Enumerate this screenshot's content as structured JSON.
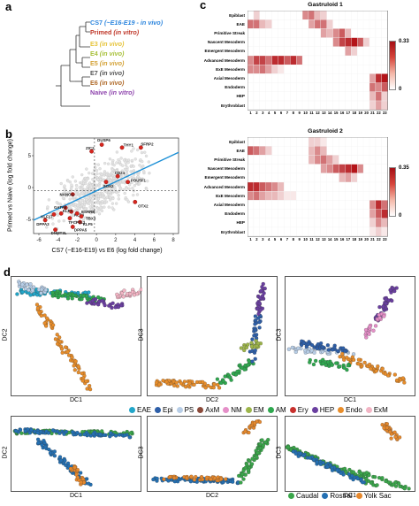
{
  "panels": {
    "a": "a",
    "b": "b",
    "c": "c",
    "d": "d"
  },
  "tree": [
    {
      "name": "CS7",
      "text": "(~E16-E19 - in vivo)",
      "color": "#2e86de"
    },
    {
      "name": "Primed",
      "text": "(in vitro)",
      "color": "#c0392b"
    },
    {
      "name": "E3",
      "text": "(in vivo)",
      "color": "#e6c43a"
    },
    {
      "name": "E4",
      "text": "(in vivo)",
      "color": "#a8c03a"
    },
    {
      "name": "E5",
      "text": "(in vivo)",
      "color": "#d4a237"
    },
    {
      "name": "E7",
      "text": "(in vivo)",
      "color": "#555555"
    },
    {
      "name": "E6",
      "text": "(in vivo)",
      "color": "#b06a2a"
    },
    {
      "name": "Naive",
      "text": "(in vitro)",
      "color": "#8e44ad"
    }
  ],
  "scatter": {
    "xlabel": "CS7 (~E16-E19) vs E6 (log fold change)",
    "ylabel": "Primed vs Naive (log fold change)",
    "xticks": [
      "-6",
      "-4",
      "-2",
      "0",
      "2",
      "4",
      "6",
      "8"
    ],
    "yticks": [
      "5",
      "0",
      "-5"
    ],
    "genes": [
      "DUSP6",
      "ZIC2",
      "THY1",
      "SFRP2",
      "CD24",
      "POU5F1",
      "SOX2",
      "NANOG",
      "OTX2",
      "GATA6",
      "KLF17",
      "KLF4",
      "DPPA3",
      "DNMT3L",
      "DPPA5",
      "KLF5",
      "TBX3",
      "ESRRB",
      "TFCP2L1",
      "KLF2"
    ]
  },
  "heatmaps": [
    {
      "title": "Gastruloid 1",
      "cbar_max": "0.33",
      "cbar_min": "0"
    },
    {
      "title": "Gastruloid 2",
      "cbar_max": "0.35",
      "cbar_min": "0"
    }
  ],
  "heatmap_rows": [
    "Epiblast",
    "EAE",
    "Primitive Streak",
    "Nascent Mesoderm",
    "Emergent Mesoderm",
    "Advanced Mesoderm",
    "ExE Mesoderm",
    "Axial Mesoderm",
    "Endoderm",
    "HEP",
    "Erythroblast"
  ],
  "heatmap_cols": [
    "1",
    "2",
    "3",
    "4",
    "5",
    "6",
    "7",
    "8",
    "9",
    "10",
    "11",
    "12",
    "13",
    "14",
    "15",
    "16",
    "17",
    "18",
    "19",
    "20",
    "21",
    "22",
    "23"
  ],
  "dc_axes": {
    "top": [
      {
        "x": "DC1",
        "y": "DC2"
      },
      {
        "x": "DC2",
        "y": "DC3"
      },
      {
        "x": "DC1",
        "y": "DC3"
      }
    ],
    "bottom": [
      {
        "x": "DC1",
        "y": "DC2"
      },
      {
        "x": "DC2",
        "y": "DC3"
      },
      {
        "x": "DC1",
        "y": "DC3"
      }
    ]
  },
  "legend_celltypes": [
    {
      "label": "EAE",
      "color": "#22a6c9"
    },
    {
      "label": "Epi",
      "color": "#2e5fa8"
    },
    {
      "label": "PS",
      "color": "#b7cde6"
    },
    {
      "label": "AxM",
      "color": "#8b4a3a"
    },
    {
      "label": "NM",
      "color": "#e58fc8"
    },
    {
      "label": "EM",
      "color": "#9db54a"
    },
    {
      "label": "AM",
      "color": "#2fa84f"
    },
    {
      "label": "Ery",
      "color": "#c8302d"
    },
    {
      "label": "HEP",
      "color": "#6a3fa0"
    },
    {
      "label": "Endo",
      "color": "#e88d2a"
    },
    {
      "label": "ExM",
      "color": "#f2b4c4"
    }
  ],
  "legend_region": [
    {
      "label": "Caudal",
      "color": "#3aa64a"
    },
    {
      "label": "Rostral",
      "color": "#2470b3"
    },
    {
      "label": "Yolk Sac",
      "color": "#e6882c"
    }
  ]
}
